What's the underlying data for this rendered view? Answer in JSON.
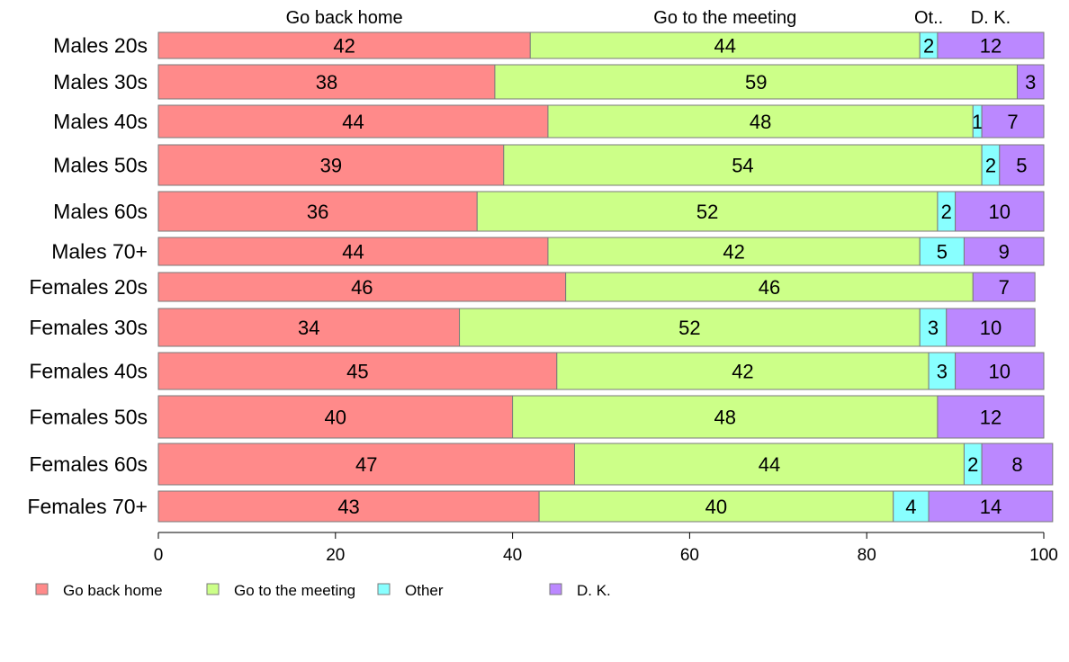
{
  "chart_data": {
    "type": "bar",
    "orientation": "horizontal",
    "stacked": true,
    "categories": [
      "Males 20s",
      "Males 30s",
      "Males 40s",
      "Males 50s",
      "Males 60s",
      "Males 70+",
      "Females 20s",
      "Females 30s",
      "Females 40s",
      "Females 50s",
      "Females 60s",
      "Females 70+"
    ],
    "series": [
      {
        "name": "Go back home",
        "color": "#ff8a8a",
        "values": [
          42,
          38,
          44,
          39,
          36,
          44,
          46,
          34,
          45,
          40,
          47,
          43
        ]
      },
      {
        "name": "Go to the meeting",
        "color": "#ccff88",
        "values": [
          44,
          59,
          48,
          54,
          52,
          42,
          46,
          52,
          42,
          48,
          44,
          40
        ]
      },
      {
        "name": "Other",
        "color": "#88ffff",
        "values": [
          2,
          0,
          1,
          2,
          2,
          5,
          0,
          3,
          3,
          0,
          2,
          4
        ]
      },
      {
        "name": "D. K.",
        "color": "#bb88ff",
        "values": [
          12,
          3,
          7,
          5,
          10,
          9,
          7,
          10,
          10,
          12,
          8,
          14
        ]
      }
    ],
    "value_labels": [
      [
        "42",
        "44",
        "2",
        "12"
      ],
      [
        "38",
        "59",
        "",
        "3"
      ],
      [
        "44",
        "48",
        "1",
        "7"
      ],
      [
        "39",
        "54",
        "2",
        "5"
      ],
      [
        "36",
        "52",
        "2",
        "10"
      ],
      [
        "44",
        "42",
        "5",
        "9"
      ],
      [
        "46",
        "46",
        "",
        "7"
      ],
      [
        "34",
        "52",
        "3",
        "10"
      ],
      [
        "45",
        "42",
        "3",
        "10"
      ],
      [
        "40",
        "48",
        "",
        "12"
      ],
      [
        "47",
        "44",
        "2",
        "8"
      ],
      [
        "43",
        "40",
        "4",
        "14"
      ]
    ],
    "top_labels": [
      "Go back home",
      "Go to the meeting",
      "Ot..",
      "D. K."
    ],
    "xlim": [
      0,
      100
    ],
    "xticks": [
      "0",
      "20",
      "40",
      "60",
      "80",
      "100"
    ],
    "legend": [
      "Go back home",
      "Go to the meeting",
      "Other",
      "D. K."
    ],
    "legend_position": "bottom-left",
    "grid": false
  }
}
